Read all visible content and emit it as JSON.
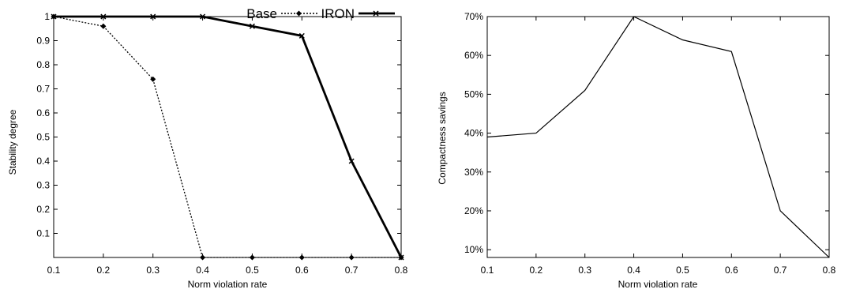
{
  "chart_data": [
    {
      "type": "line",
      "title": "",
      "xlabel": "Norm violation rate",
      "ylabel": "Stability degree",
      "xlim": [
        0.1,
        0.8
      ],
      "ylim": [
        0,
        1
      ],
      "x_ticks": [
        "0.1",
        "0.2",
        "0.3",
        "0.4",
        "0.5",
        "0.6",
        "0.7",
        "0.8"
      ],
      "y_ticks": [
        "0.1",
        "0.2",
        "0.3",
        "0.4",
        "0.5",
        "0.6",
        "0.7",
        "0.8",
        "0.9",
        "1"
      ],
      "legend_position": "top-right outside",
      "grid": false,
      "x": [
        0.1,
        0.2,
        0.3,
        0.4,
        0.5,
        0.6,
        0.7,
        0.8
      ],
      "series": [
        {
          "name": "Base",
          "style": "dotted",
          "values": [
            1.0,
            0.96,
            0.74,
            0.0,
            0.0,
            0.0,
            0.0,
            0.0
          ]
        },
        {
          "name": "IRON",
          "style": "solid-thick",
          "values": [
            1.0,
            1.0,
            1.0,
            1.0,
            0.96,
            0.92,
            0.4,
            0.0
          ]
        }
      ]
    },
    {
      "type": "line",
      "title": "",
      "xlabel": "Norm violation rate",
      "ylabel": "Compactness savings",
      "xlim": [
        0.1,
        0.8
      ],
      "ylim": [
        8,
        70
      ],
      "x_ticks": [
        "0.1",
        "0.2",
        "0.3",
        "0.4",
        "0.5",
        "0.6",
        "0.7",
        "0.8"
      ],
      "y_ticks": [
        "10%",
        "20%",
        "30%",
        "40%",
        "50%",
        "60%",
        "70%"
      ],
      "y_tick_values": [
        10,
        20,
        30,
        40,
        50,
        60,
        70
      ],
      "grid": false,
      "x": [
        0.1,
        0.2,
        0.3,
        0.4,
        0.5,
        0.6,
        0.7,
        0.8
      ],
      "series": [
        {
          "values": [
            39,
            40,
            51,
            70,
            64,
            61,
            20,
            8
          ]
        }
      ]
    }
  ]
}
